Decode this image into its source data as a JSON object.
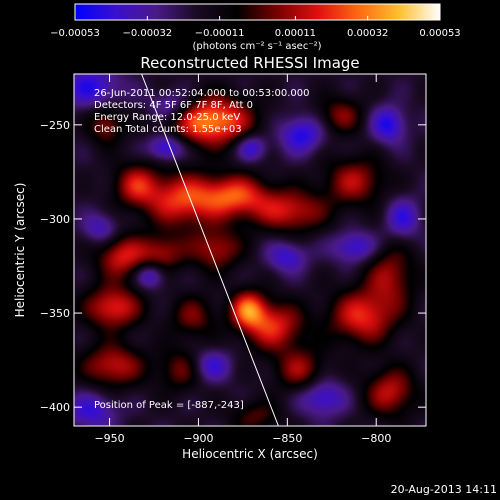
{
  "chart_data": {
    "type": "heatmap",
    "title": "Reconstructed RHESSI Image",
    "xlabel": "Heliocentric X (arcsec)",
    "ylabel": "Heliocentric Y (arcsec)",
    "xlim": [
      -970,
      -772
    ],
    "ylim": [
      -410,
      -223
    ],
    "x_ticks": [
      {
        "value": -950,
        "label": "−950"
      },
      {
        "value": -900,
        "label": "−900"
      },
      {
        "value": -850,
        "label": "−850"
      },
      {
        "value": -800,
        "label": "−800"
      }
    ],
    "y_ticks": [
      {
        "value": -250,
        "label": "−250"
      },
      {
        "value": -300,
        "label": "−300"
      },
      {
        "value": -350,
        "label": "−350"
      },
      {
        "value": -400,
        "label": "−400"
      }
    ],
    "colorbar": {
      "min": -0.00053,
      "max": 0.00053,
      "unit_label": "(photons cm⁻² s⁻¹ asec⁻²)",
      "ticks": [
        {
          "value": -0.00053,
          "label": "−0.00053"
        },
        {
          "value": -0.00032,
          "label": "−0.00032"
        },
        {
          "value": -0.00011,
          "label": "−0.00011"
        },
        {
          "value": 0.00011,
          "label": "0.00011"
        },
        {
          "value": 0.00032,
          "label": "0.00032"
        },
        {
          "value": 0.00053,
          "label": "0.00053"
        }
      ],
      "colors": [
        "#0000ff",
        "#3a0fcf",
        "#4a1a88",
        "#1a0a22",
        "#000000",
        "#7a0000",
        "#e01010",
        "#ff6a10",
        "#ffc030",
        "#ffffff"
      ]
    },
    "annotations": [
      "26-Jun-2011 00:52:04.000 to 00:53:00.000",
      "Detectors: 4F 5F 6F 7F 8F, Att 0",
      "Energy Range: 12.0-25.0 keV",
      "Clean    Total counts: 1.55e+03"
    ],
    "peak_annotation": "Position of Peak = [-887,-243]",
    "limb_line": [
      [
        -932,
        -223
      ],
      [
        -855,
        -410
      ]
    ],
    "sources": [
      {
        "x": -893,
        "y": -248,
        "sx": 16,
        "sy": 9,
        "a": 1.0
      },
      {
        "x": -880,
        "y": -288,
        "sx": 14,
        "sy": 8,
        "a": 0.78
      },
      {
        "x": -910,
        "y": -290,
        "sx": 14,
        "sy": 10,
        "a": 0.72
      },
      {
        "x": -935,
        "y": -282,
        "sx": 9,
        "sy": 8,
        "a": 0.6
      },
      {
        "x": -952,
        "y": -250,
        "sx": 7,
        "sy": 7,
        "a": 0.5
      },
      {
        "x": -943,
        "y": -320,
        "sx": 10,
        "sy": 8,
        "a": 0.65
      },
      {
        "x": -920,
        "y": -318,
        "sx": 9,
        "sy": 7,
        "a": 0.5
      },
      {
        "x": -890,
        "y": -316,
        "sx": 10,
        "sy": 8,
        "a": 0.55
      },
      {
        "x": -848,
        "y": -296,
        "sx": 14,
        "sy": 8,
        "a": 0.62
      },
      {
        "x": -812,
        "y": -280,
        "sx": 12,
        "sy": 9,
        "a": 0.55
      },
      {
        "x": -792,
        "y": -330,
        "sx": 10,
        "sy": 12,
        "a": 0.5
      },
      {
        "x": -948,
        "y": -347,
        "sx": 11,
        "sy": 8,
        "a": 0.72
      },
      {
        "x": -903,
        "y": -352,
        "sx": 9,
        "sy": 8,
        "a": 0.42
      },
      {
        "x": -948,
        "y": -378,
        "sx": 12,
        "sy": 8,
        "a": 0.62
      },
      {
        "x": -910,
        "y": -380,
        "sx": 9,
        "sy": 8,
        "a": 0.42
      },
      {
        "x": -858,
        "y": -357,
        "sx": 12,
        "sy": 9,
        "a": 0.7
      },
      {
        "x": -872,
        "y": -348,
        "sx": 7,
        "sy": 7,
        "a": 0.8
      },
      {
        "x": -843,
        "y": -380,
        "sx": 10,
        "sy": 8,
        "a": 0.5
      },
      {
        "x": -808,
        "y": -352,
        "sx": 13,
        "sy": 10,
        "a": 0.7
      },
      {
        "x": -792,
        "y": -392,
        "sx": 10,
        "sy": 9,
        "a": 0.6
      },
      {
        "x": -820,
        "y": -245,
        "sx": 9,
        "sy": 7,
        "a": 0.45
      },
      {
        "x": -868,
        "y": -405,
        "sx": 10,
        "sy": 6,
        "a": 0.35
      },
      {
        "x": -960,
        "y": -230,
        "sx": 12,
        "sy": 8,
        "a": -0.5
      },
      {
        "x": -918,
        "y": -262,
        "sx": 7,
        "sy": 5,
        "a": -0.6
      },
      {
        "x": -915,
        "y": -240,
        "sx": 9,
        "sy": 6,
        "a": -0.45
      },
      {
        "x": -842,
        "y": -255,
        "sx": 9,
        "sy": 7,
        "a": -0.55
      },
      {
        "x": -793,
        "y": -250,
        "sx": 7,
        "sy": 7,
        "a": -0.55
      },
      {
        "x": -812,
        "y": -315,
        "sx": 9,
        "sy": 6,
        "a": -0.5
      },
      {
        "x": -927,
        "y": -330,
        "sx": 6,
        "sy": 5,
        "a": -0.5
      },
      {
        "x": -893,
        "y": -378,
        "sx": 8,
        "sy": 6,
        "a": -0.45
      },
      {
        "x": -830,
        "y": -395,
        "sx": 9,
        "sy": 7,
        "a": -0.5
      },
      {
        "x": -960,
        "y": -402,
        "sx": 10,
        "sy": 7,
        "a": -0.45
      },
      {
        "x": -850,
        "y": -320,
        "sx": 8,
        "sy": 6,
        "a": -0.45
      },
      {
        "x": -870,
        "y": -262,
        "sx": 6,
        "sy": 5,
        "a": -0.5
      },
      {
        "x": -955,
        "y": -305,
        "sx": 7,
        "sy": 6,
        "a": -0.4
      },
      {
        "x": -785,
        "y": -300,
        "sx": 7,
        "sy": 8,
        "a": -0.45
      }
    ]
  },
  "footer": {
    "timestamp": "20-Aug-2013 14:11"
  }
}
